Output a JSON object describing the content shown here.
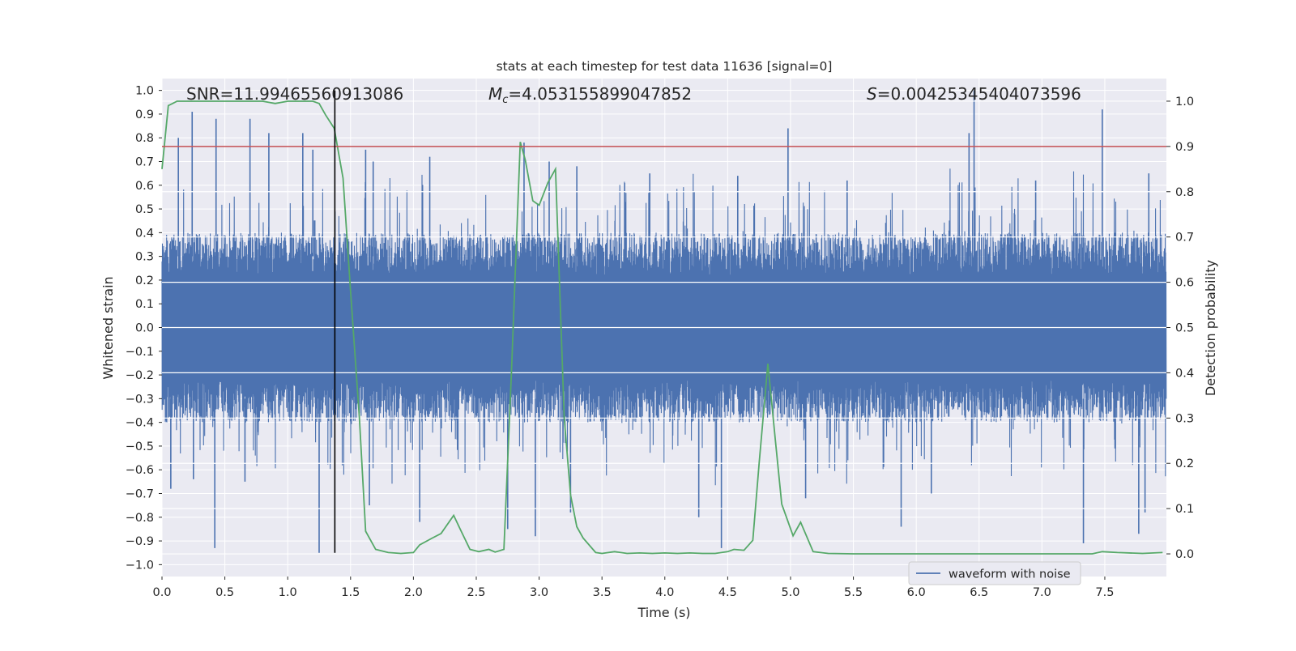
{
  "figure": {
    "title": "stats at each timestep for test data 11636 [signal=0]",
    "snr_text": "SNR=11.99465560913086",
    "mc_symbol": "M",
    "mc_subscript": "c",
    "mc_value": "=4.053155899047852",
    "s_symbol": "S",
    "s_value": "=0.00425345404073596",
    "legend_label": "waveform with noise"
  },
  "colors": {
    "plot_bg": "#eaeaf2",
    "grid": "#ffffff",
    "waveform": "#4c72b0",
    "probability": "#55a868",
    "threshold": "#c44e52",
    "marker": "#000000"
  },
  "chart_data": {
    "type": "line",
    "xlabel": "Time (s)",
    "ylabel_left": "Whitened strain",
    "ylabel_right": "Detection probability",
    "xlim": [
      0.0,
      7.99
    ],
    "ylim_left": [
      -1.05,
      1.05
    ],
    "ylim_right": [
      -0.05,
      1.05
    ],
    "x_ticks": [
      "0.0",
      "0.5",
      "1.0",
      "1.5",
      "2.0",
      "2.5",
      "3.0",
      "3.5",
      "4.0",
      "4.5",
      "5.0",
      "5.5",
      "6.0",
      "6.5",
      "7.0",
      "7.5"
    ],
    "y_left_ticks": [
      "1.0",
      "0.9",
      "0.8",
      "0.7",
      "0.6",
      "0.5",
      "0.4",
      "0.3",
      "0.2",
      "0.1",
      "0.0",
      "-0.1",
      "-0.2",
      "-0.3",
      "-0.4",
      "-0.5",
      "-0.6",
      "-0.7",
      "-0.8",
      "-0.9",
      "-1.0"
    ],
    "y_right_ticks": [
      "1.0",
      "0.9",
      "0.8",
      "0.7",
      "0.6",
      "0.5",
      "0.4",
      "0.3",
      "0.2",
      "0.1",
      "0.0"
    ],
    "threshold_right": 0.9,
    "marker_time": 1.375,
    "marker_range_left": [
      -0.95,
      1.0
    ],
    "grid": true,
    "legend_position": "lower right",
    "series": [
      {
        "name": "waveform with noise",
        "axis": "left",
        "style": "dense-noise",
        "core_amplitude": 0.4,
        "spikes_positive": [
          [
            0.13,
            0.8
          ],
          [
            0.24,
            0.91
          ],
          [
            0.43,
            0.88
          ],
          [
            0.7,
            0.88
          ],
          [
            0.85,
            0.82
          ],
          [
            1.12,
            0.82
          ],
          [
            1.2,
            0.75
          ],
          [
            1.62,
            0.75
          ],
          [
            1.68,
            0.7
          ],
          [
            2.13,
            0.72
          ],
          [
            2.88,
            0.78
          ],
          [
            3.08,
            0.7
          ],
          [
            3.3,
            0.68
          ],
          [
            3.88,
            0.65
          ],
          [
            4.58,
            0.64
          ],
          [
            4.98,
            0.84
          ],
          [
            5.45,
            0.62
          ],
          [
            6.42,
            0.82
          ],
          [
            6.46,
            1.0
          ],
          [
            6.95,
            0.62
          ],
          [
            7.48,
            0.92
          ],
          [
            7.85,
            0.65
          ]
        ],
        "spikes_negative": [
          [
            0.07,
            -0.68
          ],
          [
            0.25,
            -0.64
          ],
          [
            0.42,
            -0.93
          ],
          [
            0.66,
            -0.65
          ],
          [
            1.25,
            -0.95
          ],
          [
            1.65,
            -0.75
          ],
          [
            2.05,
            -0.82
          ],
          [
            2.75,
            -0.85
          ],
          [
            2.97,
            -0.88
          ],
          [
            3.25,
            -0.78
          ],
          [
            4.27,
            -0.8
          ],
          [
            4.45,
            -0.93
          ],
          [
            5.12,
            -0.72
          ],
          [
            5.88,
            -0.84
          ],
          [
            6.12,
            -0.7
          ],
          [
            7.33,
            -0.91
          ],
          [
            7.77,
            -0.87
          ],
          [
            7.82,
            -0.78
          ]
        ]
      },
      {
        "name": "",
        "axis": "right",
        "style": "line",
        "x": [
          0.0,
          0.05,
          0.12,
          0.2,
          0.4,
          0.6,
          0.8,
          0.9,
          1.0,
          1.1,
          1.2,
          1.25,
          1.3,
          1.37,
          1.44,
          1.5,
          1.57,
          1.62,
          1.7,
          1.8,
          1.9,
          2.0,
          2.05,
          2.15,
          2.22,
          2.32,
          2.38,
          2.45,
          2.52,
          2.6,
          2.65,
          2.72,
          2.78,
          2.85,
          2.89,
          2.95,
          3.0,
          3.07,
          3.13,
          3.2,
          3.25,
          3.3,
          3.35,
          3.45,
          3.5,
          3.6,
          3.7,
          3.8,
          3.9,
          4.0,
          4.1,
          4.2,
          4.3,
          4.4,
          4.5,
          4.55,
          4.63,
          4.7,
          4.75,
          4.82,
          4.88,
          4.93,
          5.02,
          5.08,
          5.18,
          5.3,
          5.5,
          6.0,
          6.5,
          7.0,
          7.4,
          7.48,
          7.6,
          7.8,
          7.96
        ],
        "y": [
          0.85,
          0.99,
          1.0,
          1.0,
          1.0,
          1.0,
          1.0,
          0.995,
          1.0,
          1.0,
          1.0,
          0.995,
          0.97,
          0.94,
          0.83,
          0.58,
          0.3,
          0.05,
          0.01,
          0.003,
          0.001,
          0.003,
          0.02,
          0.035,
          0.045,
          0.085,
          0.05,
          0.01,
          0.005,
          0.01,
          0.004,
          0.01,
          0.4,
          0.91,
          0.87,
          0.78,
          0.77,
          0.82,
          0.85,
          0.3,
          0.13,
          0.06,
          0.035,
          0.003,
          0.001,
          0.005,
          0.001,
          0.002,
          0.001,
          0.002,
          0.001,
          0.002,
          0.001,
          0.001,
          0.005,
          0.01,
          0.008,
          0.03,
          0.2,
          0.42,
          0.25,
          0.11,
          0.04,
          0.07,
          0.005,
          0.001,
          0.0,
          0.0,
          0.0,
          0.0,
          0.0,
          0.005,
          0.003,
          0.001,
          0.003
        ]
      }
    ]
  }
}
